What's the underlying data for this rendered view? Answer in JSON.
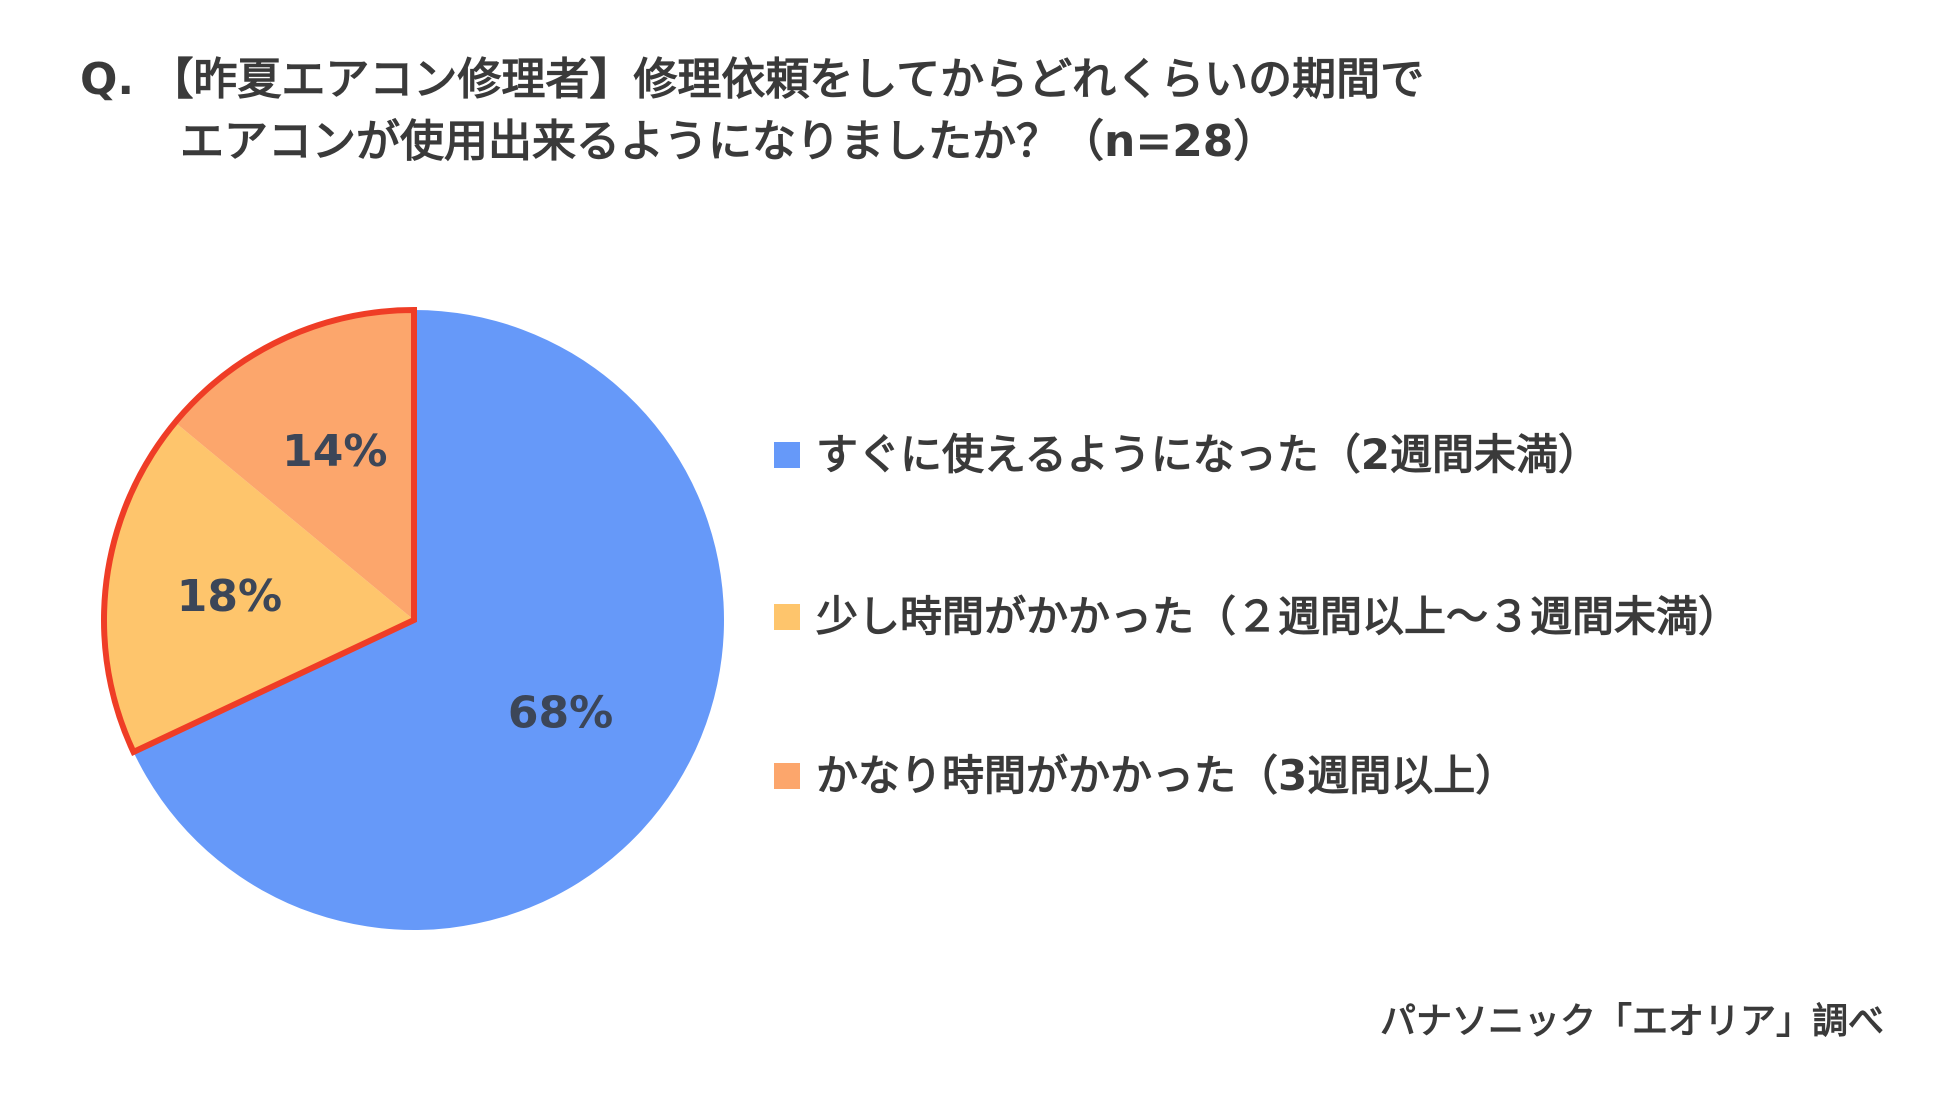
{
  "title": {
    "line1": "Q. 【昨夏エアコン修理者】修理依頼をしてからどれくらいの期間で",
    "line2": "エアコンが使用出来るようになりましたか？（n=28）"
  },
  "chart_data": {
    "type": "pie",
    "title": "Q. 【昨夏エアコン修理者】修理依頼をしてからどれくらいの期間でエアコンが使用出来るようになりましたか？（n=28）",
    "categories": [
      "すぐに使えるようになった（2週間未満）",
      "少し時間がかかった（２週間以上～３週間未満）",
      "かなり時間がかかった（3週間以上）"
    ],
    "values": [
      68,
      18,
      14
    ],
    "labels": [
      "68%",
      "18%",
      "14%"
    ],
    "colors": [
      "#6699f9",
      "#fec56c",
      "#fca66c"
    ],
    "highlight_color": "#ef3d26",
    "highlighted": [
      1,
      2
    ],
    "legend_position": "right"
  },
  "source": "パナソニック「エオリア」調べ"
}
